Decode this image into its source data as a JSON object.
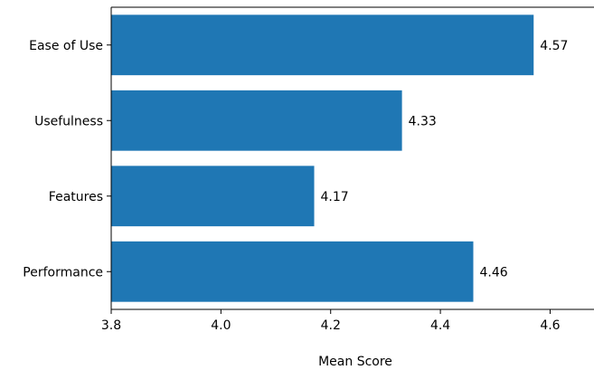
{
  "chart_data": {
    "type": "bar",
    "orientation": "horizontal",
    "title": "",
    "xlabel": "Mean Score",
    "ylabel": "",
    "categories": [
      "Ease of Use",
      "Usefulness",
      "Features",
      "Performance"
    ],
    "values": [
      4.57,
      4.33,
      4.17,
      4.46
    ],
    "value_labels": [
      "4.57",
      "4.33",
      "4.17",
      "4.46"
    ],
    "xlim": [
      3.8,
      4.68
    ],
    "xticks": [
      3.8,
      4.0,
      4.2,
      4.4,
      4.6
    ],
    "xtick_labels": [
      "3.8",
      "4.0",
      "4.2",
      "4.4",
      "4.6"
    ],
    "grid": false,
    "bar_color": "#1f77b4"
  }
}
